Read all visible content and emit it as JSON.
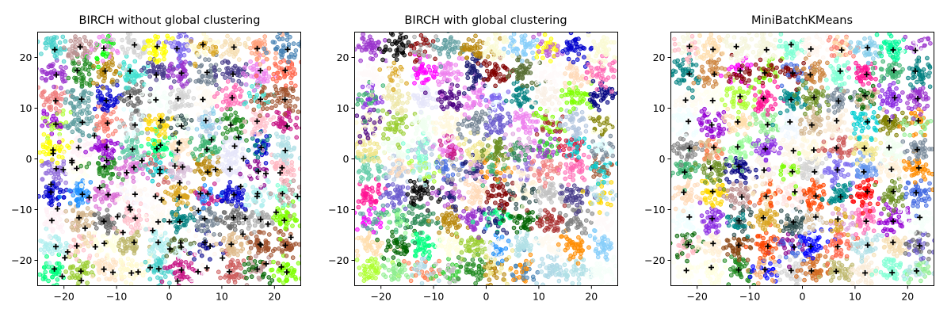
{
  "chart_data": [
    {
      "type": "scatter",
      "title": "BIRCH without global clustering",
      "xlabel": "",
      "ylabel": "",
      "xlim": [
        -25,
        25
      ],
      "ylim": [
        -25,
        25
      ],
      "xticks": [
        -20,
        -10,
        0,
        10,
        20
      ],
      "yticks": [
        -20,
        -10,
        0,
        10,
        20
      ],
      "xtick_labels": [
        "−20",
        "−10",
        "0",
        "10",
        "20"
      ],
      "ytick_labels": [
        "−20",
        "−10",
        "0",
        "10",
        "20"
      ],
      "grid": false,
      "legend": "none",
      "blob_centers_x": [
        -22,
        -17,
        -12,
        -7,
        -2,
        2,
        7,
        12,
        17,
        22
      ],
      "blob_centers_y": [
        -22,
        -17,
        -12,
        -7,
        -2,
        2,
        7,
        12,
        17,
        22
      ],
      "points_per_blob": 40,
      "blob_spread": 1.4,
      "centroid_marker": "+",
      "centroid_count": 158,
      "palette_seed": 11
    },
    {
      "type": "scatter",
      "title": "BIRCH with global clustering",
      "xlabel": "",
      "ylabel": "",
      "xlim": [
        -25,
        25
      ],
      "ylim": [
        -25,
        25
      ],
      "xticks": [
        -20,
        -10,
        0,
        10,
        20
      ],
      "yticks": [
        -20,
        -10,
        0,
        10,
        20
      ],
      "xtick_labels": [
        "−20",
        "−10",
        "0",
        "10",
        "20"
      ],
      "ytick_labels": [
        "−20",
        "−10",
        "0",
        "10",
        "20"
      ],
      "grid": false,
      "legend": "none",
      "blob_centers_x": [
        -22,
        -17,
        -12,
        -7,
        -2,
        2,
        7,
        12,
        17,
        22
      ],
      "blob_centers_y": [
        -22,
        -17,
        -12,
        -7,
        -2,
        2,
        7,
        12,
        17,
        22
      ],
      "points_per_blob": 40,
      "blob_spread": 1.4,
      "centroid_marker": "none",
      "centroid_count": 0,
      "palette_seed": 23
    },
    {
      "type": "scatter",
      "title": "MiniBatchKMeans",
      "xlabel": "",
      "ylabel": "",
      "xlim": [
        -25,
        25
      ],
      "ylim": [
        -25,
        25
      ],
      "xticks": [
        -20,
        -10,
        0,
        10,
        20
      ],
      "yticks": [
        -20,
        -10,
        0,
        10,
        20
      ],
      "xtick_labels": [
        "−20",
        "−10",
        "0",
        "10",
        "20"
      ],
      "ytick_labels": [
        "−20",
        "−10",
        "0",
        "10",
        "20"
      ],
      "grid": false,
      "legend": "none",
      "blob_centers_x": [
        -22,
        -17,
        -12,
        -7,
        -2,
        2,
        7,
        12,
        17,
        22
      ],
      "blob_centers_y": [
        -22,
        -17,
        -12,
        -7,
        -2,
        2,
        7,
        12,
        17,
        22
      ],
      "points_per_blob": 40,
      "blob_spread": 1.4,
      "centroid_marker": "+",
      "centroid_count": 100,
      "palette_seed": 37
    }
  ],
  "palette": [
    "#f0f8ff",
    "#faebd7",
    "#00ffff",
    "#7fffd4",
    "#f0ffff",
    "#f5f5dc",
    "#ffe4c4",
    "#000000",
    "#ffebcd",
    "#0000ff",
    "#8a2be2",
    "#a52a2a",
    "#deb887",
    "#5f9ea0",
    "#7fff00",
    "#d2691e",
    "#ff7f50",
    "#6495ed",
    "#fff8dc",
    "#dc143c",
    "#00008b",
    "#008b8b",
    "#b8860b",
    "#a9a9a9",
    "#006400",
    "#bdb76b",
    "#8b008b",
    "#556b2f",
    "#ff8c00",
    "#9932cc",
    "#8b0000",
    "#e9967a",
    "#8fbc8f",
    "#483d8b",
    "#2f4f4f",
    "#00ced1",
    "#9400d3",
    "#ff1493",
    "#00bfff",
    "#696969",
    "#1e90ff",
    "#b22222",
    "#fffaf0",
    "#228b22",
    "#ff00ff",
    "#dcdcdc",
    "#f8f8ff",
    "#ffd700",
    "#daa520",
    "#808080",
    "#008000",
    "#adff2f",
    "#f0fff0",
    "#ff69b4",
    "#cd5c5c",
    "#4b0082",
    "#fffff0",
    "#f0e68c",
    "#e6e6fa",
    "#fff0f5",
    "#7cfc00",
    "#fffacd",
    "#add8e6",
    "#f08080",
    "#e0ffff",
    "#fafad2",
    "#90ee90",
    "#d3d3d3",
    "#ffb6c1",
    "#ffa07a",
    "#20b2aa",
    "#87cefa",
    "#778899",
    "#b0c4de",
    "#ffffe0",
    "#00ff00",
    "#32cd32",
    "#faf0e6",
    "#800000",
    "#66cdaa",
    "#0000cd",
    "#ba55d3",
    "#9370db",
    "#3cb371",
    "#7b68ee",
    "#00fa9a",
    "#48d1cc",
    "#c71585",
    "#191970",
    "#f5fffa",
    "#ffe4e1",
    "#ffe4b5",
    "#ffdead",
    "#000080",
    "#fdf5e6",
    "#808000",
    "#6b8e23",
    "#ffa500",
    "#ff4500",
    "#da70d6",
    "#eee8aa",
    "#98fb98",
    "#afeeee",
    "#db7093",
    "#ffefd5",
    "#ffdab9",
    "#cd853f",
    "#ffc0cb",
    "#dda0dd",
    "#b0e0e6",
    "#800080",
    "#ff0000",
    "#bc8f8f",
    "#4169e1",
    "#8b4513",
    "#fa8072",
    "#f4a460",
    "#2e8b57",
    "#fff5ee",
    "#a0522d",
    "#c0c0c0",
    "#87ceeb",
    "#6a5acd",
    "#708090",
    "#fffafa",
    "#00ff7f",
    "#4682b4",
    "#d2b48c",
    "#008080",
    "#d8bfd8",
    "#ff6347",
    "#40e0d0",
    "#ee82ee",
    "#f5deb3",
    "#ffffff",
    "#f5f5f5",
    "#ffff00",
    "#9acd32"
  ]
}
